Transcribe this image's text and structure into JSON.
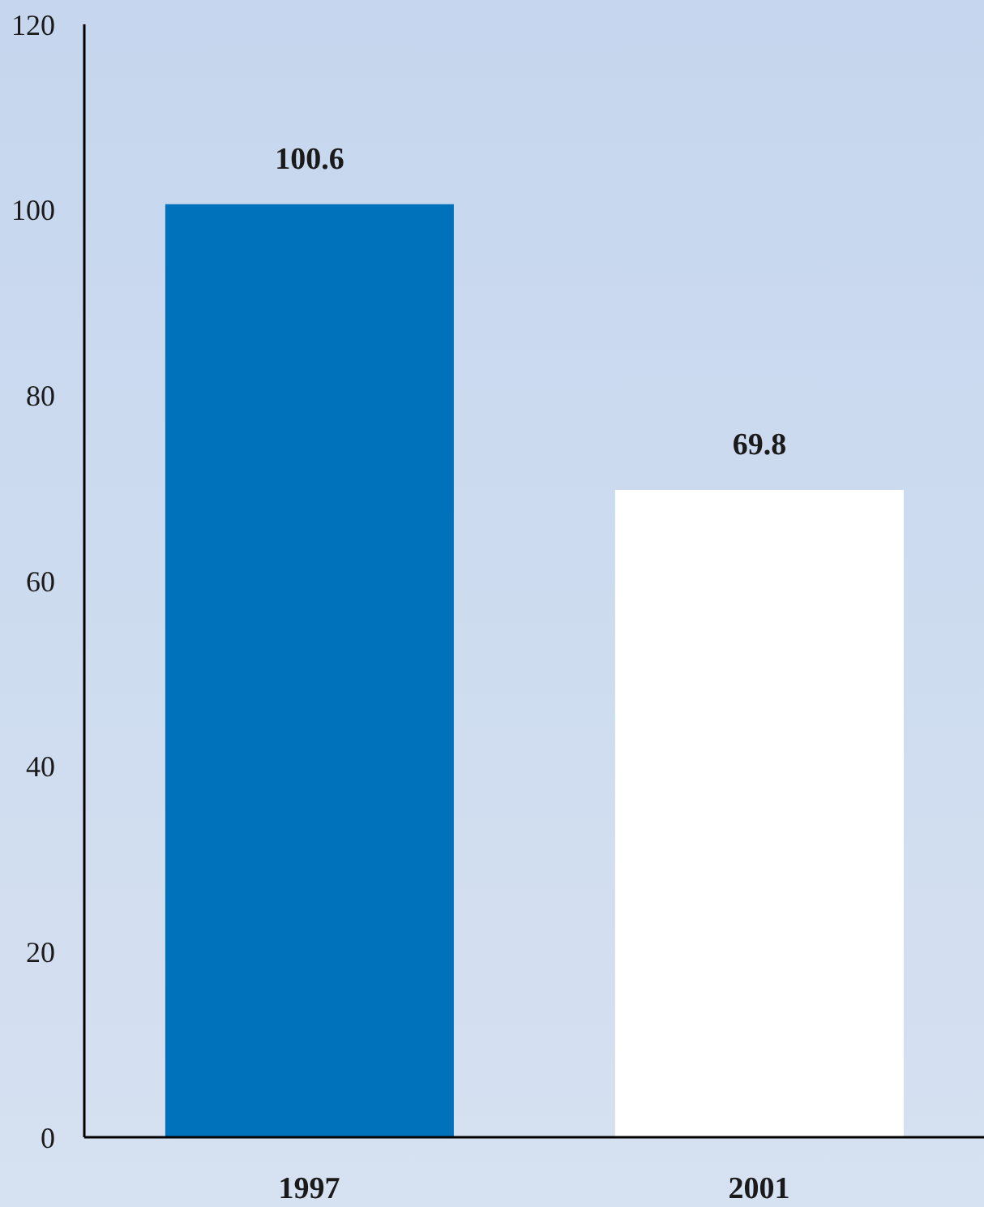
{
  "chart_data": {
    "type": "bar",
    "categories": [
      "1997",
      "2001"
    ],
    "values": [
      100.6,
      69.8
    ],
    "colors": [
      "#0072bc",
      "#ffffff"
    ],
    "ylim": [
      0,
      120
    ],
    "yticks": [
      0,
      20,
      40,
      60,
      80,
      100,
      120
    ],
    "data_labels": true,
    "grid": false,
    "legend": false
  }
}
